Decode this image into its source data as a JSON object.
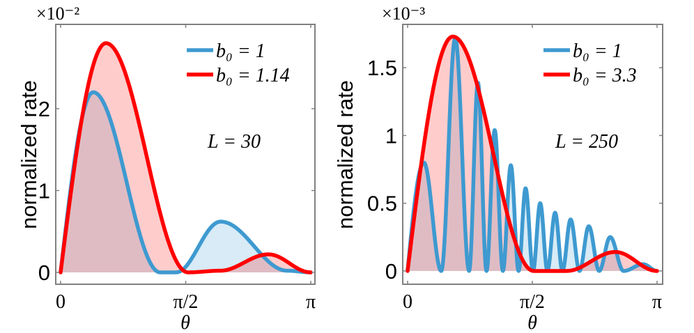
{
  "chart_data": [
    {
      "type": "area",
      "xlabel": "θ",
      "ylabel": "normalized rate",
      "y_multiplier": "×10⁻²",
      "xlim": [
        -0.061,
        3.194
      ],
      "ylim": [
        -0.145,
        3.03
      ],
      "xticks": [
        {
          "value": 0,
          "label": "0"
        },
        {
          "value": 1.5708,
          "label": "π/2"
        },
        {
          "value": 3.1416,
          "label": "π"
        }
      ],
      "yticks": [
        {
          "value": 0,
          "label": "0"
        },
        {
          "value": 1,
          "label": "1"
        },
        {
          "value": 2,
          "label": "2"
        }
      ],
      "annotation": "L = 30",
      "legend_position": "top-right",
      "grid": false,
      "series": [
        {
          "name": "b₀ = 1",
          "color": "#3e9ad0",
          "points": [
            [
              0,
              0
            ],
            [
              0.41,
              2.2
            ],
            [
              1.25,
              0
            ],
            [
              1.45,
              0
            ],
            [
              2.01,
              0.62
            ],
            [
              2.85,
              0.02
            ],
            [
              3.1416,
              0
            ]
          ]
        },
        {
          "name": "b₀ = 1.14",
          "color": "#ff0000",
          "points": [
            [
              0,
              0
            ],
            [
              0.57,
              2.8
            ],
            [
              1.6,
              0
            ],
            [
              2.0,
              0.02
            ],
            [
              2.61,
              0.22
            ],
            [
              3.1416,
              0
            ]
          ]
        }
      ]
    },
    {
      "type": "area",
      "xlabel": "θ",
      "ylabel": "normalized rate",
      "y_multiplier": "×10⁻³",
      "xlim": [
        -0.061,
        3.212
      ],
      "ylim": [
        -0.098,
        1.82
      ],
      "xticks": [
        {
          "value": 0,
          "label": "0"
        },
        {
          "value": 1.5708,
          "label": "π/2"
        },
        {
          "value": 3.1416,
          "label": "π"
        }
      ],
      "yticks": [
        {
          "value": 0,
          "label": "0"
        },
        {
          "value": 0.5,
          "label": "0.5"
        },
        {
          "value": 1,
          "label": "1"
        },
        {
          "value": 1.5,
          "label": "1.5"
        }
      ],
      "annotation": "L = 250",
      "legend_position": "top-right",
      "grid": false,
      "series": [
        {
          "name": "b₀ = 1",
          "color": "#3e9ad0",
          "points": [
            [
              0,
              0
            ],
            [
              0.205,
              0.8
            ],
            [
              0.424,
              0
            ],
            [
              0.6,
              1.72
            ],
            [
              0.775,
              0
            ],
            [
              0.886,
              1.39
            ],
            [
              0.994,
              0
            ],
            [
              1.097,
              1.04
            ],
            [
              1.2,
              0
            ],
            [
              1.3,
              0.78
            ],
            [
              1.398,
              0
            ],
            [
              1.486,
              0.61
            ],
            [
              1.58,
              0
            ],
            [
              1.67,
              0.5
            ],
            [
              1.761,
              0
            ],
            [
              1.858,
              0.43
            ],
            [
              1.95,
              0
            ],
            [
              2.053,
              0.38
            ],
            [
              2.165,
              0
            ],
            [
              2.282,
              0.33
            ],
            [
              2.413,
              0
            ],
            [
              2.551,
              0.25
            ],
            [
              2.72,
              0
            ],
            [
              2.966,
              0.05
            ],
            [
              3.1416,
              0
            ]
          ]
        },
        {
          "name": "b₀ = 3.3",
          "color": "#ff0000",
          "points": [
            [
              0,
              0
            ],
            [
              0.57,
              1.73
            ],
            [
              1.59,
              0
            ],
            [
              2.0,
              0.0
            ],
            [
              2.617,
              0.14
            ],
            [
              3.1416,
              0
            ]
          ]
        }
      ]
    }
  ]
}
